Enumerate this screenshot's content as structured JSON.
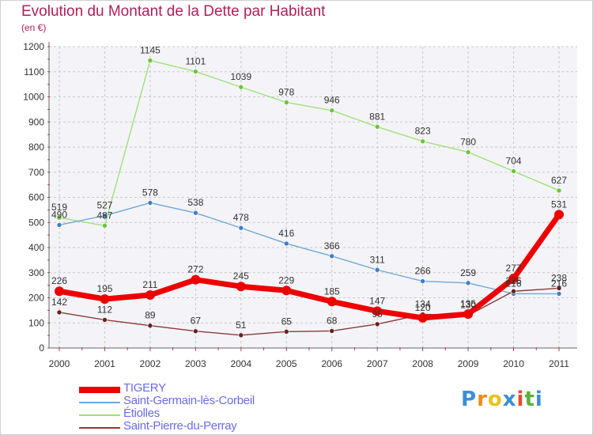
{
  "header": {
    "title": "Evolution du Montant de la Dette par Habitant",
    "subtitle": "(en €)"
  },
  "logo": {
    "text": "Proxiti",
    "letters": [
      "P",
      "r",
      "o",
      "x",
      "i",
      "t",
      "i"
    ],
    "colors": [
      "#3a8fd6",
      "#f08a1c",
      "#e8c21a",
      "#3a8fd6",
      "#e84a2a",
      "#5ab13c",
      "#3a8fd6"
    ]
  },
  "chart_data": {
    "type": "line",
    "x": [
      "2000",
      "2001",
      "2002",
      "2003",
      "2004",
      "2005",
      "2006",
      "2007",
      "2008",
      "2009",
      "2010",
      "2011"
    ],
    "ylim": [
      0,
      1200
    ],
    "yticks": [
      "0",
      "100",
      "200",
      "300",
      "400",
      "500",
      "600",
      "700",
      "800",
      "900",
      "1000",
      "1100",
      "1200"
    ],
    "grid": true,
    "legend_position": "bottom-left",
    "series": [
      {
        "name": "TIGERY",
        "color": "#ee0000",
        "marker_color": "#ee0000",
        "thick": true,
        "values": [
          226,
          195,
          211,
          272,
          245,
          229,
          185,
          147,
          120,
          135,
          277,
          531
        ],
        "labels": [
          "226",
          "195",
          "211",
          "272",
          "245",
          "229",
          "185",
          "147",
          "120",
          "135",
          "277",
          "531"
        ]
      },
      {
        "name": "Saint-Germain-lès-Corbeil",
        "color": "#6fa8d6",
        "marker_color": "#3f7fc4",
        "thick": false,
        "values": [
          490,
          527,
          578,
          538,
          478,
          416,
          366,
          311,
          266,
          259,
          216,
          216
        ],
        "labels": [
          "490",
          "527",
          "578",
          "538",
          "478",
          "416",
          "366",
          "311",
          "266",
          "259",
          "216",
          "216"
        ]
      },
      {
        "name": "Étiolles",
        "color": "#9ee07a",
        "marker_color": "#6cc43a",
        "thick": false,
        "values": [
          519,
          487,
          1145,
          1101,
          1039,
          978,
          946,
          881,
          823,
          780,
          704,
          627
        ],
        "labels": [
          "519",
          "487",
          "1145",
          "1101",
          "1039",
          "978",
          "946",
          "881",
          "823",
          "780",
          "704",
          "627"
        ]
      },
      {
        "name": "Saint-Pierre-du-Perray",
        "color": "#8b3a3a",
        "marker_color": "#6a1f1f",
        "thick": false,
        "values": [
          142,
          112,
          89,
          67,
          51,
          65,
          68,
          95,
          134,
          130,
          226,
          238
        ],
        "labels": [
          "142",
          "112",
          "89",
          "67",
          "51",
          "65",
          "68",
          "95",
          "134",
          "130",
          "226",
          "238"
        ]
      }
    ]
  }
}
